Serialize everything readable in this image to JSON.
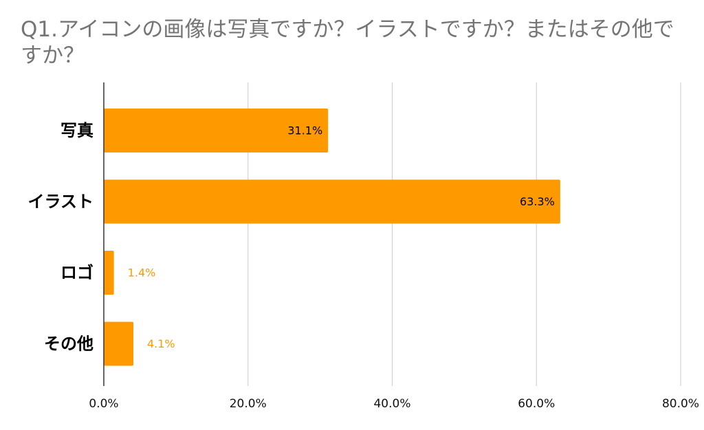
{
  "chart_data": {
    "type": "bar",
    "orientation": "horizontal",
    "title": "Q1.アイコンの画像は写真ですか？イラストですか？またはその他ですか？",
    "categories": [
      "写真",
      "イラスト",
      "ロゴ",
      "その他"
    ],
    "values": [
      31.1,
      63.3,
      1.4,
      4.1
    ],
    "data_labels": [
      "31.1%",
      "63.3%",
      "1.4%",
      "4.1%"
    ],
    "xlim": [
      0,
      80
    ],
    "x_ticks": [
      0,
      20,
      40,
      60,
      80
    ],
    "x_tick_labels": [
      "0.0%",
      "20.0%",
      "40.0%",
      "60.0%",
      "80.0%"
    ],
    "xlabel": "",
    "ylabel": "",
    "grid": "vertical",
    "legend": "none",
    "colors": {
      "bar": "#FF9900",
      "label_inside": "#000000",
      "label_outside": "#FF9900",
      "grid": "#cccccc",
      "axis": "#333333",
      "title": "#757575"
    }
  }
}
